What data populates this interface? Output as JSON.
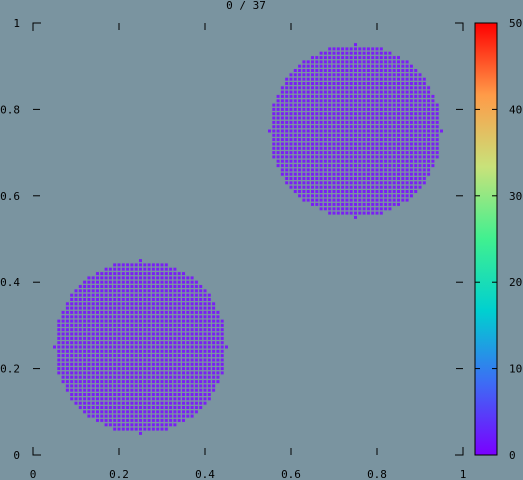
{
  "chart_data": {
    "type": "scatter",
    "title": "0 / 37",
    "xlabel": "",
    "ylabel": "",
    "xlim": [
      0,
      1
    ],
    "ylim": [
      0,
      1
    ],
    "x_ticks": [
      "0",
      "0.2",
      "0.4",
      "0.6",
      "0.8",
      "1"
    ],
    "y_ticks": [
      "0",
      "0.2",
      "0.4",
      "0.6",
      "0.8",
      "1"
    ],
    "grid": false,
    "point_color_value": 0,
    "point_color": "#7a1ef5",
    "background_color": "#7a94a0",
    "clusters": [
      {
        "center": [
          0.25,
          0.25
        ],
        "radius": 0.2,
        "grid_spacing": 0.01
      },
      {
        "center": [
          0.75,
          0.75
        ],
        "radius": 0.2,
        "grid_spacing": 0.01
      }
    ],
    "colorbar": {
      "range": [
        0,
        50
      ],
      "ticks": [
        "0",
        "10",
        "20",
        "30",
        "40",
        "50"
      ],
      "colormap": "rainbow",
      "stops": [
        "#7a00ff",
        "#3d6cf5",
        "#00d0d0",
        "#40f090",
        "#c8e27a",
        "#ff9b48",
        "#ff0000"
      ]
    }
  }
}
